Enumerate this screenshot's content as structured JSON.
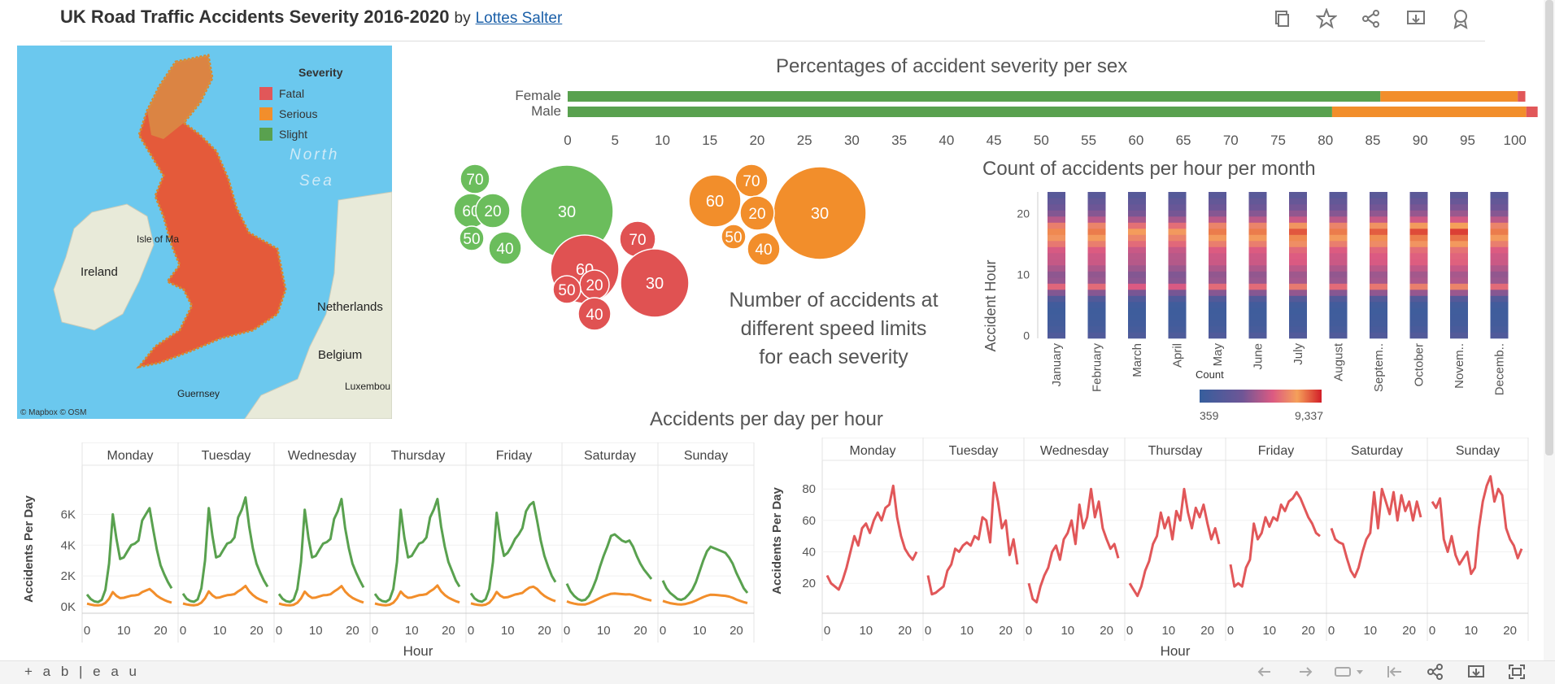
{
  "header": {
    "title": "UK Road Traffic Accidents Severity 2016-2020",
    "by": "by",
    "author": "Lottes Salter",
    "toolbar_icons": [
      "duplicate-icon",
      "star-icon",
      "share-icon",
      "download-icon",
      "badge-icon"
    ]
  },
  "colors": {
    "fatal": "#e15759",
    "serious": "#f28e2b",
    "slight": "#59a14f",
    "green_bubble": "#6bbd5c",
    "orange_bubble": "#f28e2b",
    "red_bubble": "#e05252"
  },
  "map": {
    "legend_title": "Severity",
    "legend_items": [
      "Fatal",
      "Serious",
      "Slight"
    ],
    "labels": [
      "North",
      "Sea",
      "Isle of Ma",
      "Ireland",
      "Netherlands",
      "Belgium",
      "Luxembou",
      "Guernsey"
    ],
    "attribution": "© Mapbox  © OSM"
  },
  "bubbles_text": [
    "Number of accidents at",
    "different speed limits",
    "for each severity"
  ],
  "hourly_title": "Accidents per day per hour",
  "footer": {
    "logo": "+ a b | e a u"
  },
  "chart_data": [
    {
      "type": "bar",
      "orientation": "horizontal",
      "stacked": true,
      "title": "Percentages of accident severity per sex",
      "categories": [
        "Female",
        "Male"
      ],
      "series": [
        {
          "name": "Slight",
          "values": [
            85.8,
            80.7
          ]
        },
        {
          "name": "Serious",
          "values": [
            14.5,
            20.5
          ]
        },
        {
          "name": "Fatal",
          "values": [
            0.8,
            1.2
          ]
        }
      ],
      "xlim": [
        0,
        102
      ],
      "xticks": [
        0,
        5,
        10,
        15,
        20,
        25,
        30,
        35,
        40,
        45,
        50,
        55,
        60,
        65,
        70,
        75,
        80,
        85,
        90,
        95,
        100
      ]
    },
    {
      "type": "scatter",
      "subtype": "packed-bubbles",
      "groups": [
        {
          "name": "Slight",
          "labels": [
            "30",
            "60",
            "70",
            "20",
            "50",
            "40"
          ]
        },
        {
          "name": "Serious",
          "labels": [
            "30",
            "60",
            "70",
            "20",
            "50",
            "40"
          ]
        },
        {
          "name": "Fatal",
          "labels": [
            "60",
            "70",
            "30",
            "20",
            "50",
            "40"
          ]
        }
      ]
    },
    {
      "type": "heatmap",
      "title": "Count of accidents per hour per month",
      "ylabel": "Accident Hour",
      "yticks": [
        0,
        10,
        20
      ],
      "categories": [
        "January",
        "February",
        "March",
        "April",
        "May",
        "June",
        "July",
        "August",
        "Septem..",
        "October",
        "Novem..",
        "Decemb.."
      ],
      "hours": 24,
      "hour_profile": [
        0.18,
        0.12,
        0.09,
        0.07,
        0.06,
        0.08,
        0.2,
        0.45,
        0.72,
        0.5,
        0.48,
        0.55,
        0.62,
        0.63,
        0.67,
        0.78,
        0.87,
        0.95,
        0.8,
        0.58,
        0.45,
        0.38,
        0.31,
        0.24
      ],
      "month_factor": [
        0.88,
        0.9,
        0.83,
        0.82,
        0.9,
        0.9,
        0.96,
        0.9,
        0.95,
        0.98,
        1.0,
        0.9
      ],
      "legend_title": "Count",
      "legend_min": "359",
      "legend_max": "9,337"
    },
    {
      "type": "line",
      "xlabel": "Hour",
      "ylabel": "Accidents Per Day",
      "panels": [
        "Monday",
        "Tuesday",
        "Wednesday",
        "Thursday",
        "Friday",
        "Saturday",
        "Sunday"
      ],
      "xticks": [
        0,
        10,
        20
      ],
      "yticks": [
        "0K",
        "2K",
        "4K",
        "6K"
      ],
      "ylim": [
        0,
        7500
      ],
      "series": [
        {
          "name": "Slight",
          "panel_values": [
            [
              800,
              500,
              350,
              300,
              450,
              1100,
              2800,
              6000,
              4400,
              3100,
              3200,
              3600,
              4000,
              4100,
              4300,
              5600,
              6000,
              6400,
              5000,
              3700,
              2700,
              2100,
              1600,
              1200
            ],
            [
              850,
              520,
              370,
              320,
              480,
              1200,
              3000,
              6400,
              4600,
              3200,
              3300,
              3700,
              4100,
              4200,
              4500,
              5800,
              6300,
              7100,
              5200,
              3800,
              2800,
              2200,
              1700,
              1300
            ],
            [
              830,
              510,
              360,
              310,
              470,
              1150,
              2900,
              6300,
              4500,
              3200,
              3300,
              3700,
              4100,
              4200,
              4400,
              5700,
              6200,
              7000,
              5100,
              3800,
              2800,
              2200,
              1700,
              1250
            ],
            [
              840,
              520,
              370,
              320,
              480,
              1150,
              2900,
              6300,
              4500,
              3200,
              3300,
              3700,
              4100,
              4200,
              4500,
              5800,
              6300,
              7000,
              5200,
              3900,
              2900,
              2300,
              1700,
              1300
            ],
            [
              870,
              540,
              380,
              330,
              490,
              1150,
              2900,
              6100,
              4400,
              3300,
              3500,
              3900,
              4400,
              4700,
              5100,
              6200,
              6600,
              6800,
              5600,
              4300,
              3300,
              2600,
              2000,
              1600
            ],
            [
              1500,
              1000,
              700,
              500,
              400,
              450,
              700,
              1200,
              1800,
              2600,
              3300,
              3900,
              4600,
              4700,
              4500,
              4300,
              4200,
              4300,
              3900,
              3300,
              2800,
              2400,
              2100,
              1800
            ],
            [
              1700,
              1200,
              900,
              700,
              500,
              450,
              550,
              800,
              1100,
              1600,
              2300,
              3000,
              3600,
              3900,
              3800,
              3700,
              3600,
              3500,
              3200,
              2800,
              2200,
              1700,
              1200,
              900
            ]
          ]
        },
        {
          "name": "Serious",
          "panel_values": [
            [
              200,
              140,
              100,
              90,
              120,
              250,
              520,
              950,
              700,
              560,
              580,
              650,
              720,
              740,
              780,
              950,
              1050,
              1150,
              950,
              720,
              560,
              440,
              340,
              270
            ],
            [
              210,
              150,
              110,
              95,
              130,
              270,
              550,
              1000,
              740,
              580,
              600,
              680,
              750,
              770,
              820,
              1000,
              1150,
              1350,
              1000,
              760,
              580,
              460,
              360,
              280
            ],
            [
              205,
              145,
              105,
              92,
              125,
              260,
              540,
              980,
              730,
              575,
              595,
              670,
              745,
              760,
              810,
              990,
              1140,
              1340,
              990,
              750,
              575,
              455,
              355,
              275
            ],
            [
              210,
              150,
              110,
              95,
              130,
              260,
              540,
              990,
              735,
              580,
              600,
              675,
              750,
              770,
              820,
              1000,
              1150,
              1380,
              1000,
              760,
              590,
              470,
              360,
              280
            ],
            [
              220,
              160,
              115,
              100,
              135,
              265,
              540,
              960,
              720,
              590,
              620,
              700,
              790,
              840,
              900,
              1100,
              1250,
              1300,
              1150,
              900,
              700,
              560,
              450,
              360
            ],
            [
              350,
              260,
              200,
              160,
              140,
              150,
              220,
              330,
              450,
              570,
              680,
              760,
              840,
              860,
              840,
              820,
              800,
              810,
              760,
              680,
              600,
              520,
              460,
              400
            ],
            [
              380,
              300,
              230,
              190,
              160,
              150,
              170,
              230,
              300,
              400,
              520,
              630,
              720,
              780,
              770,
              750,
              730,
              710,
              660,
              580,
              470,
              380,
              300,
              240
            ]
          ]
        }
      ]
    },
    {
      "type": "line",
      "xlabel": "Hour",
      "ylabel": "Accidents Per Day",
      "panels": [
        "Monday",
        "Tuesday",
        "Wednesday",
        "Thursday",
        "Friday",
        "Saturday",
        "Sunday"
      ],
      "xticks": [
        0,
        10,
        20
      ],
      "yticks": [
        20,
        40,
        60,
        80
      ],
      "ylim": [
        2,
        92
      ],
      "series": [
        {
          "name": "Fatal",
          "panel_values": [
            [
              25,
              20,
              18,
              16,
              22,
              30,
              40,
              50,
              44,
              55,
              58,
              52,
              60,
              65,
              60,
              68,
              70,
              82,
              62,
              50,
              42,
              38,
              35,
              40
            ],
            [
              25,
              13,
              14,
              16,
              18,
              28,
              32,
              42,
              40,
              44,
              46,
              44,
              50,
              48,
              62,
              60,
              46,
              84,
              72,
              55,
              60,
              38,
              48,
              32
            ],
            [
              20,
              10,
              8,
              18,
              25,
              30,
              40,
              44,
              35,
              48,
              52,
              60,
              45,
              70,
              55,
              62,
              80,
              62,
              72,
              55,
              48,
              42,
              45,
              36
            ],
            [
              20,
              16,
              12,
              18,
              28,
              34,
              45,
              50,
              65,
              55,
              62,
              48,
              66,
              60,
              80,
              65,
              55,
              68,
              62,
              70,
              58,
              48,
              55,
              45
            ],
            [
              32,
              18,
              20,
              18,
              30,
              35,
              58,
              48,
              52,
              62,
              56,
              62,
              60,
              70,
              66,
              72,
              74,
              78,
              74,
              68,
              62,
              58,
              52,
              50
            ],
            [
              55,
              48,
              46,
              45,
              36,
              28,
              24,
              30,
              40,
              48,
              52,
              78,
              55,
              80,
              72,
              64,
              78,
              60,
              76,
              66,
              72,
              60,
              72,
              62
            ],
            [
              72,
              68,
              74,
              48,
              40,
              50,
              38,
              32,
              36,
              40,
              26,
              30,
              55,
              72,
              82,
              88,
              72,
              80,
              76,
              55,
              48,
              44,
              36,
              42
            ]
          ]
        }
      ]
    }
  ]
}
